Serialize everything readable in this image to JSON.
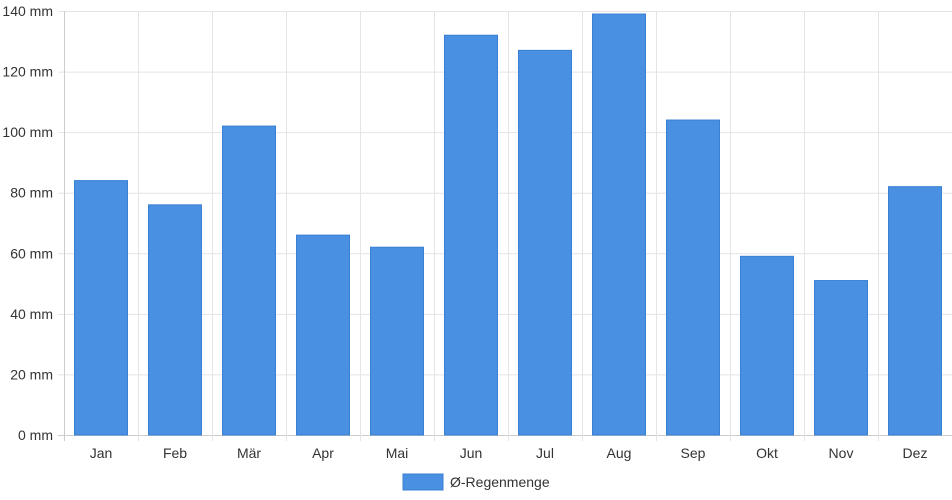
{
  "chart_data": {
    "type": "bar",
    "categories": [
      "Jan",
      "Feb",
      "Mär",
      "Apr",
      "Mai",
      "Jun",
      "Jul",
      "Aug",
      "Sep",
      "Okt",
      "Nov",
      "Dez"
    ],
    "series": [
      {
        "name": "Ø-Regenmenge",
        "values": [
          84,
          76,
          102,
          66,
          62,
          132,
          127,
          139,
          104,
          59,
          51,
          82
        ]
      }
    ],
    "y_ticks": [
      "0 mm",
      "20 mm",
      "40 mm",
      "60 mm",
      "80 mm",
      "100 mm",
      "120 mm",
      "140 mm"
    ],
    "ylim": [
      0,
      140
    ],
    "y_unit": "mm",
    "grid": true,
    "legend_position": "bottom-center",
    "colors": {
      "bar": "#4a90e2",
      "bar_border": "#3a80d2",
      "grid": "#e4e4e4",
      "axis": "#cccccc"
    }
  }
}
